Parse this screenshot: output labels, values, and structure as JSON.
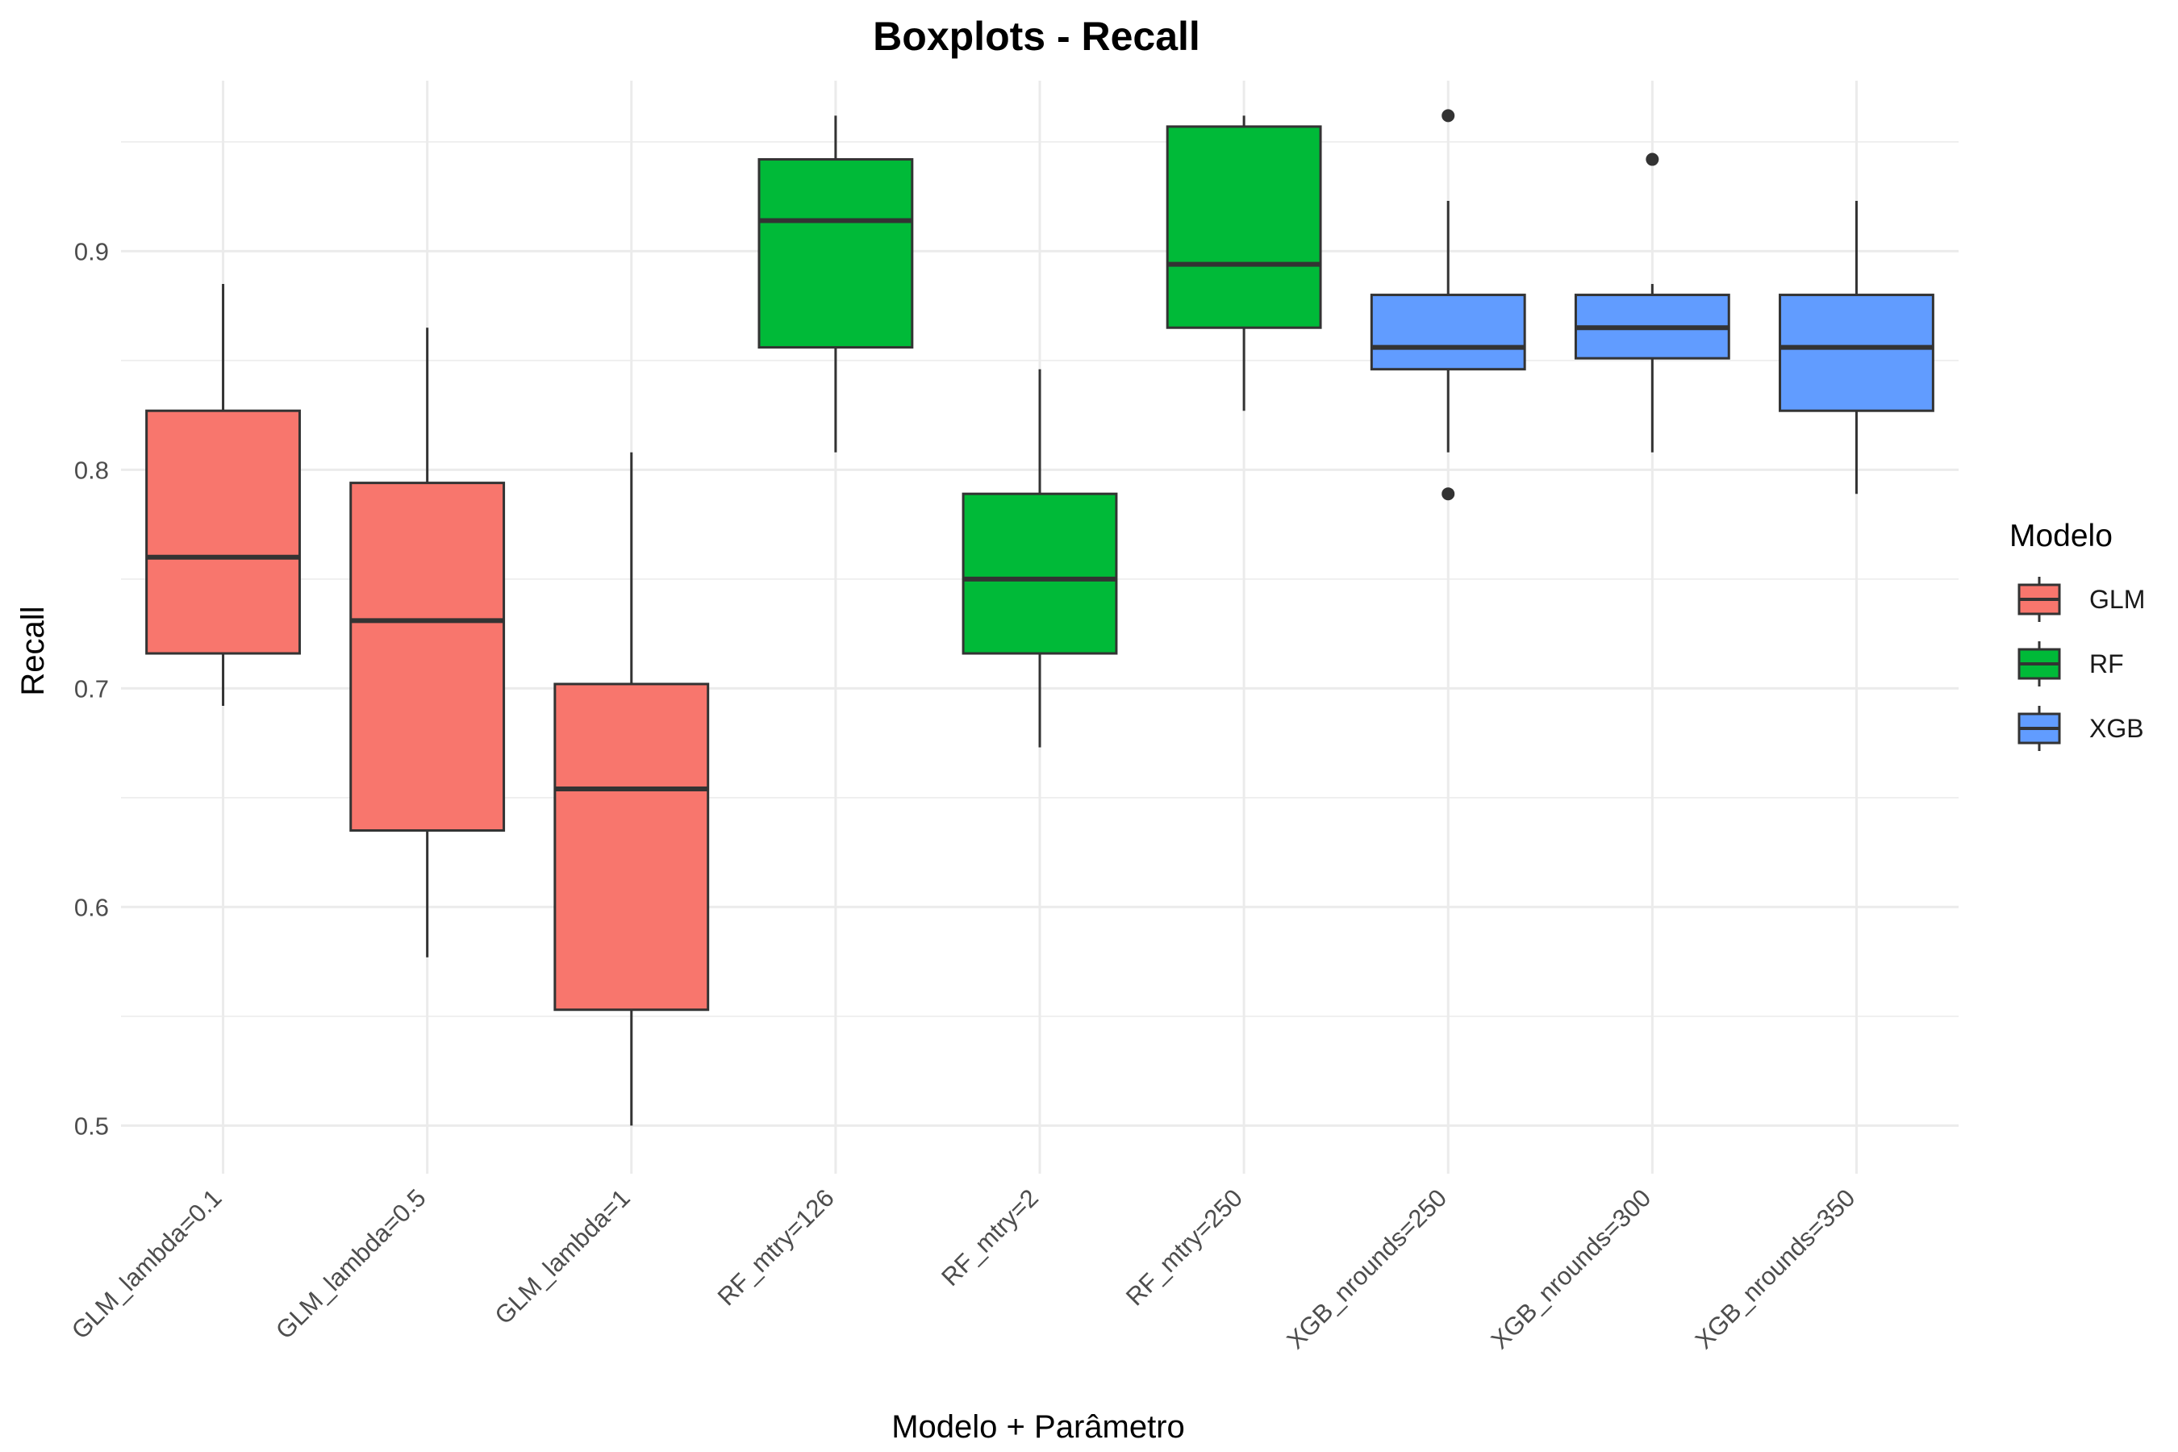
{
  "chart_data": {
    "type": "boxplot",
    "title": "Boxplots - Recall",
    "xlabel": "Modelo + Parâmetro",
    "ylabel": "Recall",
    "ylim": [
      0.478,
      0.978
    ],
    "yticks": [
      0.5,
      0.6,
      0.7,
      0.8,
      0.9
    ],
    "ytick_labels": [
      "0.5",
      "0.6",
      "0.7",
      "0.8",
      "0.9"
    ],
    "grid": true,
    "legend": {
      "title": "Modelo",
      "position": "right",
      "items": [
        {
          "label": "GLM",
          "color": "#F8766D"
        },
        {
          "label": "RF",
          "color": "#00BA38"
        },
        {
          "label": "XGB",
          "color": "#619CFF"
        }
      ]
    },
    "categories": [
      "GLM_lambda=0.1",
      "GLM_lambda=0.5",
      "GLM_lambda=1",
      "RF_mtry=126",
      "RF_mtry=2",
      "RF_mtry=250",
      "XGB_nrounds=250",
      "XGB_nrounds=300",
      "XGB_nrounds=350"
    ],
    "boxes": [
      {
        "category": "GLM_lambda=0.1",
        "group": "GLM",
        "whisker_low": 0.692,
        "q1": 0.716,
        "median": 0.76,
        "q3": 0.827,
        "whisker_high": 0.885,
        "outliers": []
      },
      {
        "category": "GLM_lambda=0.5",
        "group": "GLM",
        "whisker_low": 0.577,
        "q1": 0.635,
        "median": 0.731,
        "q3": 0.794,
        "whisker_high": 0.865,
        "outliers": []
      },
      {
        "category": "GLM_lambda=1",
        "group": "GLM",
        "whisker_low": 0.5,
        "q1": 0.553,
        "median": 0.654,
        "q3": 0.702,
        "whisker_high": 0.808,
        "outliers": []
      },
      {
        "category": "RF_mtry=126",
        "group": "RF",
        "whisker_low": 0.808,
        "q1": 0.856,
        "median": 0.914,
        "q3": 0.942,
        "whisker_high": 0.962,
        "outliers": []
      },
      {
        "category": "RF_mtry=2",
        "group": "RF",
        "whisker_low": 0.673,
        "q1": 0.716,
        "median": 0.75,
        "q3": 0.789,
        "whisker_high": 0.846,
        "outliers": []
      },
      {
        "category": "RF_mtry=250",
        "group": "RF",
        "whisker_low": 0.827,
        "q1": 0.865,
        "median": 0.894,
        "q3": 0.957,
        "whisker_high": 0.962,
        "outliers": []
      },
      {
        "category": "XGB_nrounds=250",
        "group": "XGB",
        "whisker_low": 0.808,
        "q1": 0.846,
        "median": 0.856,
        "q3": 0.88,
        "whisker_high": 0.923,
        "outliers": [
          0.962,
          0.789
        ]
      },
      {
        "category": "XGB_nrounds=300",
        "group": "XGB",
        "whisker_low": 0.808,
        "q1": 0.851,
        "median": 0.865,
        "q3": 0.88,
        "whisker_high": 0.885,
        "outliers": [
          0.942
        ]
      },
      {
        "category": "XGB_nrounds=350",
        "group": "XGB",
        "whisker_low": 0.789,
        "q1": 0.827,
        "median": 0.856,
        "q3": 0.88,
        "whisker_high": 0.923,
        "outliers": []
      }
    ],
    "colors": {
      "GLM": "#F8766D",
      "RF": "#00BA38",
      "XGB": "#619CFF",
      "grid": "#EBEBEB",
      "outline": "#333333"
    }
  }
}
